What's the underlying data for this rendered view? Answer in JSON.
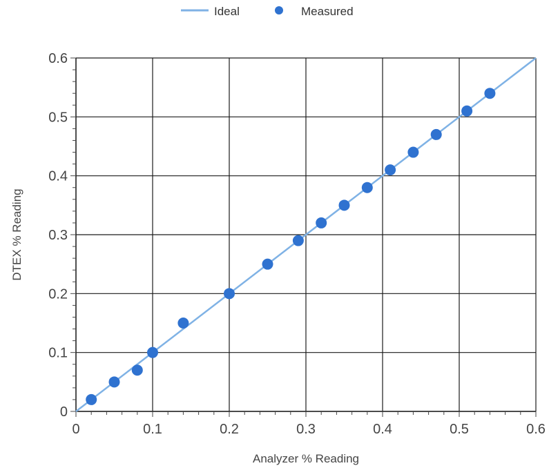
{
  "chart_data": {
    "type": "scatter",
    "title": "",
    "xlabel": "Analyzer % Reading",
    "ylabel": "DTEX % Reading",
    "xlim": [
      0,
      0.6
    ],
    "ylim": [
      0,
      0.6
    ],
    "x_ticks": [
      "0",
      "0.1",
      "0.2",
      "0.3",
      "0.4",
      "0.5",
      "0.6"
    ],
    "y_ticks": [
      "0",
      "0.1",
      "0.2",
      "0.3",
      "0.4",
      "0.5",
      "0.6"
    ],
    "grid": true,
    "legend_position": "top-center",
    "series": [
      {
        "name": "Ideal",
        "kind": "line",
        "color": "#7fb2e5",
        "x": [
          0,
          0.6
        ],
        "y": [
          0,
          0.6
        ]
      },
      {
        "name": "Measured",
        "kind": "scatter",
        "color": "#2f72d0",
        "x": [
          0.02,
          0.05,
          0.08,
          0.1,
          0.14,
          0.2,
          0.25,
          0.29,
          0.32,
          0.35,
          0.38,
          0.41,
          0.44,
          0.47,
          0.51,
          0.54
        ],
        "y": [
          0.02,
          0.05,
          0.07,
          0.1,
          0.15,
          0.2,
          0.25,
          0.29,
          0.32,
          0.35,
          0.38,
          0.41,
          0.44,
          0.47,
          0.51,
          0.54
        ]
      }
    ]
  }
}
